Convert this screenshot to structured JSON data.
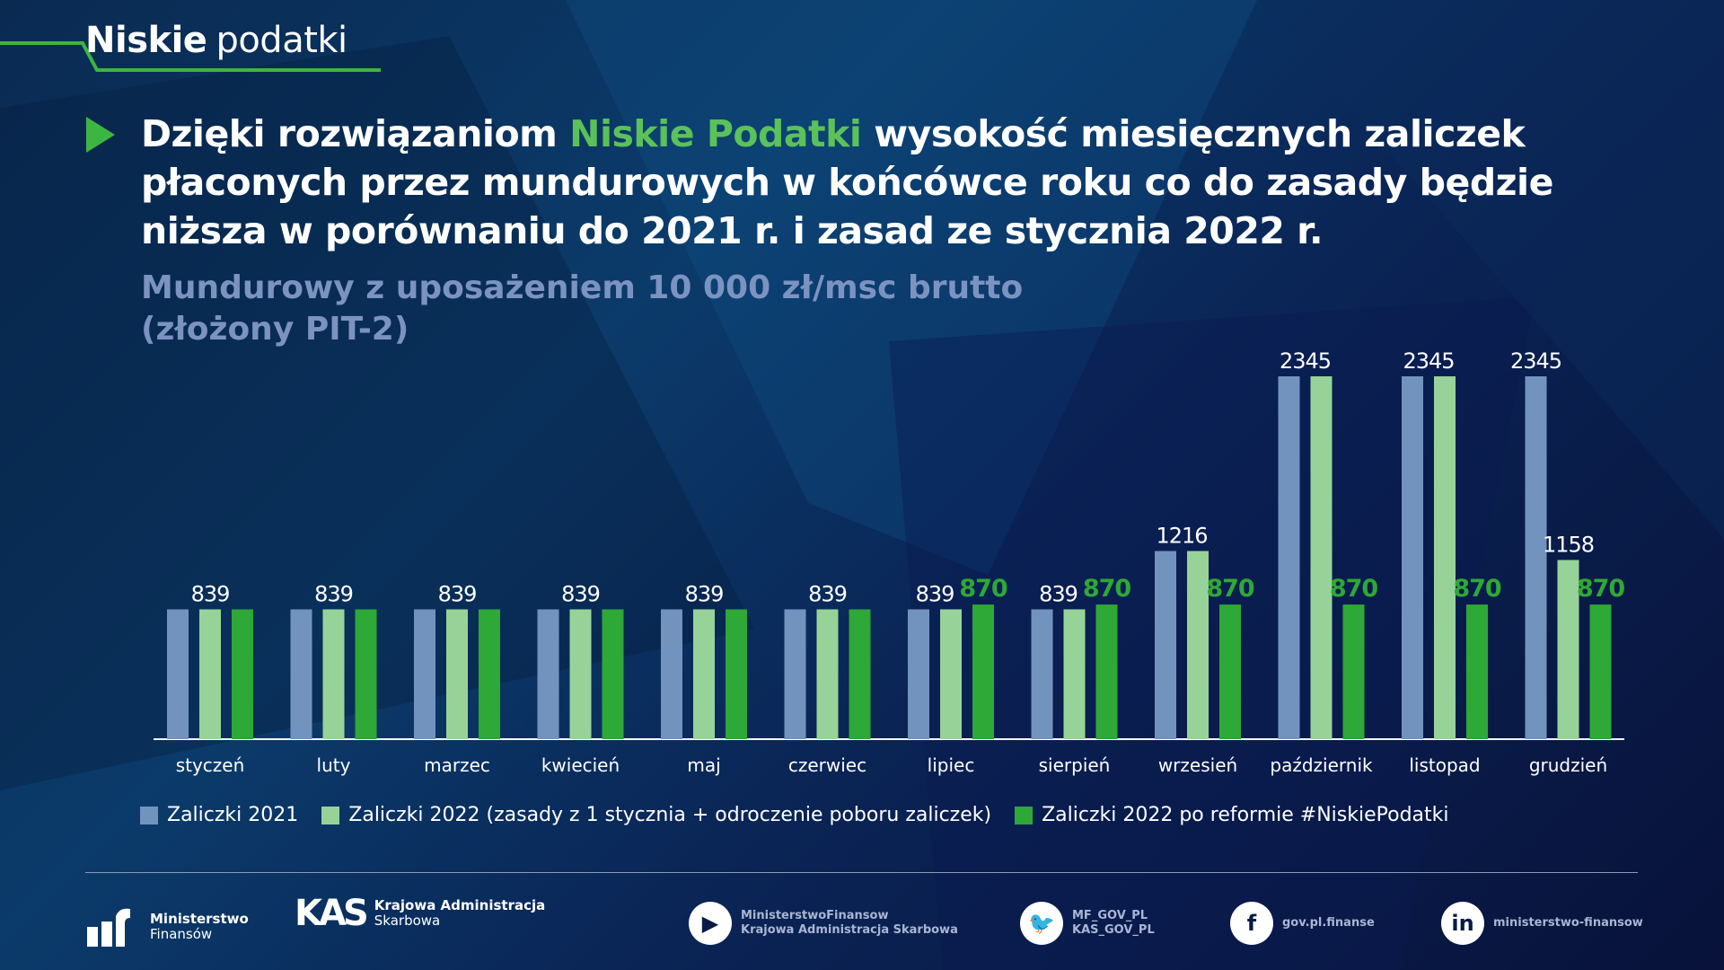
{
  "brand": {
    "bold": "Niskie",
    "light": "podatki"
  },
  "headline": {
    "before": "Dzięki rozwiązaniom ",
    "highlight": "Niskie Podatki",
    "after": " wysokość miesięcznych zaliczek płaconych przez mundurowych w końcówce roku co do zasady będzie niższa w porównaniu do 2021 r. i zasad ze stycznia 2022 r."
  },
  "subtitle": {
    "line1": "Mundurowy z uposażeniem 10 000 zł/msc brutto",
    "line2": "(złożony PIT-2)"
  },
  "colors": {
    "s2021": "#7393bf",
    "s2022": "#97d399",
    "reform": "#2ea836",
    "accent": "#5bc15a"
  },
  "chart_data": {
    "type": "bar",
    "categories": [
      "styczeń",
      "luty",
      "marzec",
      "kwiecień",
      "maj",
      "czerwiec",
      "lipiec",
      "sierpień",
      "wrzesień",
      "październik",
      "listopad",
      "grudzień"
    ],
    "series": [
      {
        "name": "Zaliczki 2021",
        "values": [
          839,
          839,
          839,
          839,
          839,
          839,
          839,
          839,
          1216,
          2345,
          2345,
          2345
        ]
      },
      {
        "name": "Zaliczki 2022 (zasady z 1 stycznia + odroczenie poboru zaliczek)",
        "values": [
          839,
          839,
          839,
          839,
          839,
          839,
          839,
          839,
          1216,
          2345,
          2345,
          1158
        ]
      },
      {
        "name": "Zaliczki 2022 po reformie #NiskiePodatki",
        "values": [
          839,
          839,
          839,
          839,
          839,
          839,
          870,
          870,
          870,
          870,
          870,
          870
        ]
      }
    ],
    "data_labels": [
      [
        {
          "text": "839",
          "over": [
            0,
            1,
            2
          ]
        }
      ],
      [
        {
          "text": "839",
          "over": [
            0,
            1,
            2
          ]
        }
      ],
      [
        {
          "text": "839",
          "over": [
            0,
            1,
            2
          ]
        }
      ],
      [
        {
          "text": "839",
          "over": [
            0,
            1,
            2
          ]
        }
      ],
      [
        {
          "text": "839",
          "over": [
            0,
            1,
            2
          ]
        }
      ],
      [
        {
          "text": "839",
          "over": [
            0,
            1,
            2
          ]
        }
      ],
      [
        {
          "text": "839",
          "over": [
            0,
            1
          ]
        },
        {
          "text": "870",
          "over": [
            2
          ]
        }
      ],
      [
        {
          "text": "839",
          "over": [
            0,
            1
          ]
        },
        {
          "text": "870",
          "over": [
            2
          ]
        }
      ],
      [
        {
          "text": "1216",
          "over": [
            0,
            1
          ]
        },
        {
          "text": "870",
          "over": [
            2
          ]
        }
      ],
      [
        {
          "text": "2345",
          "over": [
            0,
            1
          ]
        },
        {
          "text": "870",
          "over": [
            2
          ]
        }
      ],
      [
        {
          "text": "2345",
          "over": [
            0,
            1
          ]
        },
        {
          "text": "870",
          "over": [
            2
          ]
        }
      ],
      [
        {
          "text": "2345",
          "over": [
            0
          ]
        },
        {
          "text": "1158",
          "over": [
            1
          ]
        },
        {
          "text": "870",
          "over": [
            2
          ]
        }
      ]
    ],
    "legend_position": "bottom",
    "grid": false
  },
  "footer": {
    "mf": {
      "line1": "Ministerstwo",
      "line2": "Finansów"
    },
    "kas": {
      "line1": "Krajowa Administracja",
      "line2": "Skarbowa"
    },
    "youtube": {
      "line1": "MinisterstwoFinansow",
      "line2": "Krajowa Administracja Skarbowa"
    },
    "twitter": {
      "line1": "MF_GOV_PL",
      "line2": "KAS_GOV_PL"
    },
    "facebook": {
      "line1": "gov.pl.finanse"
    },
    "linkedin": {
      "line1": "ministerstwo-finansow"
    }
  }
}
